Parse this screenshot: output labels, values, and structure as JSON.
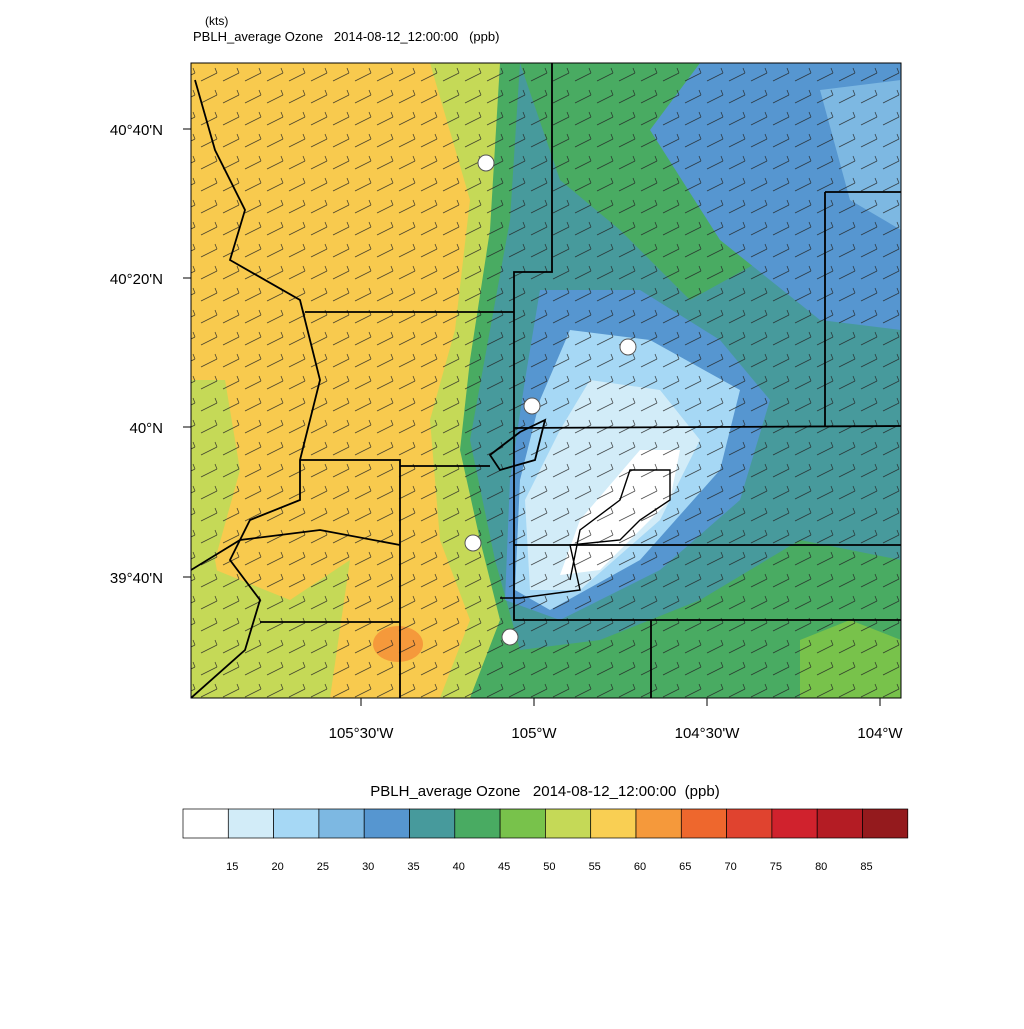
{
  "header": {
    "units": "(kts)",
    "title": "PBLH_average Ozone   2014-08-12_12:00:00   (ppb)"
  },
  "map": {
    "lat_labels": [
      "40°40'N",
      "40°20'N",
      "40°N",
      "39°40'N"
    ],
    "lon_labels": [
      "105°30'W",
      "105°W",
      "104°30'W",
      "104°W"
    ]
  },
  "colorbar": {
    "title": "PBLH_average Ozone   2014-08-12_12:00:00  (ppb)",
    "colors": [
      "#ffffff",
      "#d2ecf8",
      "#a6d8f5",
      "#7db8e2",
      "#5696d0",
      "#479a9c",
      "#49ab62",
      "#78c24b",
      "#c5d957",
      "#f9cf53",
      "#f5993b",
      "#ee672d",
      "#e0432f",
      "#d0222d",
      "#b41c24",
      "#941a1d"
    ],
    "labels": [
      15,
      20,
      25,
      30,
      35,
      40,
      45,
      50,
      55,
      60,
      65,
      70,
      75,
      80,
      85
    ]
  }
}
